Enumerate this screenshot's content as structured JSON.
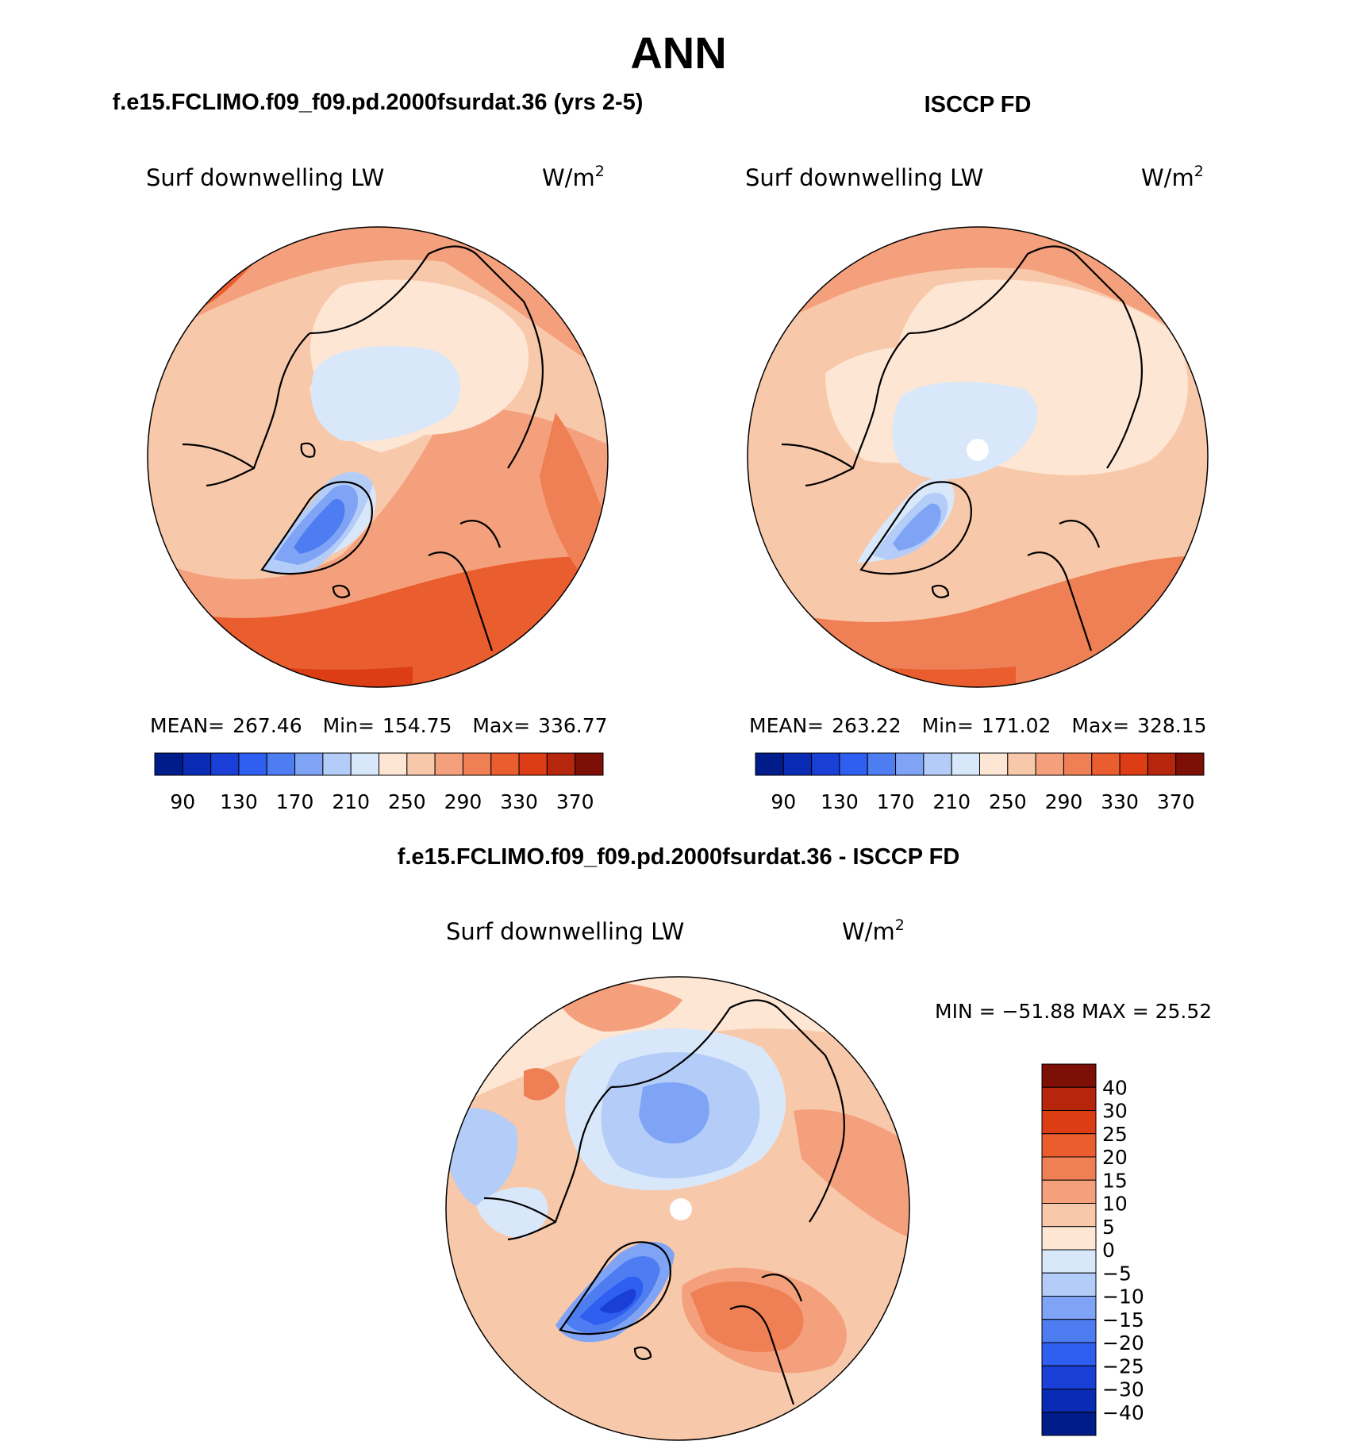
{
  "title": "ANN",
  "panels": [
    {
      "id": "model",
      "heading": "f.e15.FCLIMO.f09_f09.pd.2000fsurdat.36 (yrs 2-5)",
      "variable": "Surf downwelling LW",
      "units": "W/m",
      "units_exp": "2",
      "stats": {
        "mean_label": "MEAN=",
        "mean": "267.46",
        "min_label": "Min=",
        "min": "154.75",
        "max_label": "Max=",
        "max": "336.77"
      }
    },
    {
      "id": "obs",
      "heading": "ISCCP FD",
      "variable": "Surf downwelling LW",
      "units": "W/m",
      "units_exp": "2",
      "stats": {
        "mean_label": "MEAN=",
        "mean": "263.22",
        "min_label": "Min=",
        "min": "171.02",
        "max_label": "Max=",
        "max": "328.15"
      }
    }
  ],
  "diff": {
    "heading": "f.e15.FCLIMO.f09_f09.pd.2000fsurdat.36 - ISCCP FD",
    "variable": "Surf downwelling LW",
    "units": "W/m",
    "units_exp": "2",
    "minmax_text": "MIN = −51.88 MAX =  25.52"
  },
  "chart_data": [
    {
      "type": "heatmap",
      "projection": "north-polar-stereographic",
      "title": "Surf downwelling LW",
      "units": "W/m2",
      "stats": {
        "mean": 267.46,
        "min": 154.75,
        "max": 336.77
      },
      "colorbar": {
        "orientation": "horizontal",
        "tick_labels": [
          "90",
          "130",
          "170",
          "210",
          "250",
          "290",
          "330",
          "370"
        ],
        "colors": [
          "#001b8a",
          "#0a2cb4",
          "#1a3fd6",
          "#2f5ff0",
          "#4e7df2",
          "#7fa3f5",
          "#b3cdf8",
          "#d8e8fa",
          "#fde6d4",
          "#f8c8aa",
          "#f4a07c",
          "#ef7f54",
          "#ea5d2e",
          "#dc3d14",
          "#b5260c",
          "#7d0f07"
        ]
      }
    },
    {
      "type": "heatmap",
      "projection": "north-polar-stereographic",
      "title": "Surf downwelling LW",
      "units": "W/m2",
      "stats": {
        "mean": 263.22,
        "min": 171.02,
        "max": 328.15
      },
      "colorbar": {
        "orientation": "horizontal",
        "tick_labels": [
          "90",
          "130",
          "170",
          "210",
          "250",
          "290",
          "330",
          "370"
        ],
        "colors": [
          "#001b8a",
          "#0a2cb4",
          "#1a3fd6",
          "#2f5ff0",
          "#4e7df2",
          "#7fa3f5",
          "#b3cdf8",
          "#d8e8fa",
          "#fde6d4",
          "#f8c8aa",
          "#f4a07c",
          "#ef7f54",
          "#ea5d2e",
          "#dc3d14",
          "#b5260c",
          "#7d0f07"
        ]
      }
    },
    {
      "type": "heatmap",
      "projection": "north-polar-stereographic",
      "title": "Surf downwelling LW",
      "units": "W/m2",
      "stats": {
        "min": -51.88,
        "max": 25.52
      },
      "colorbar": {
        "orientation": "vertical",
        "tick_labels": [
          "40",
          "30",
          "25",
          "20",
          "15",
          "10",
          "5",
          "0",
          "−5",
          "−10",
          "−15",
          "−20",
          "−25",
          "−30",
          "−40"
        ],
        "colors": [
          "#7d0f07",
          "#b5260c",
          "#dc3d14",
          "#ea5d2e",
          "#ef7f54",
          "#f4a07c",
          "#f8c8aa",
          "#fde6d4",
          "#d8e8fa",
          "#b3cdf8",
          "#7fa3f5",
          "#4e7df2",
          "#2f5ff0",
          "#1a3fd6",
          "#0a2cb4",
          "#001b8a"
        ]
      }
    }
  ]
}
